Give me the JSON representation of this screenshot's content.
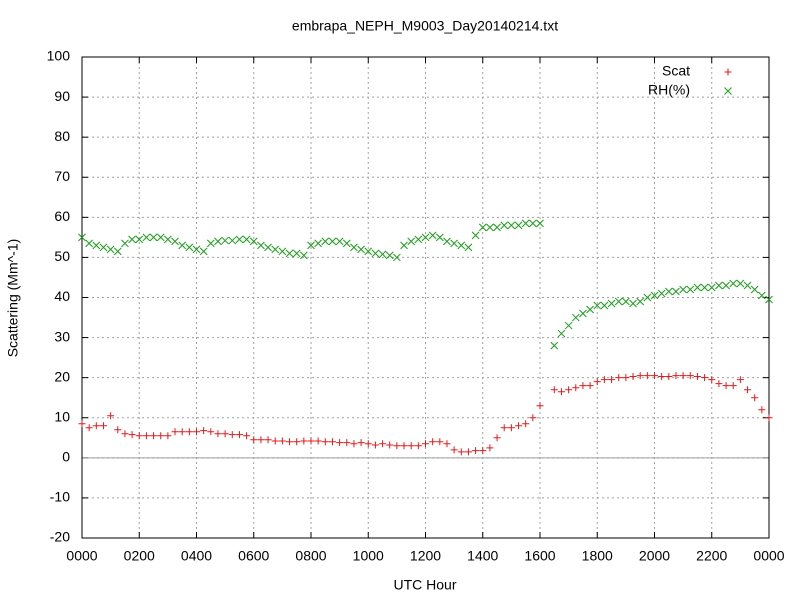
{
  "chart_data": {
    "type": "scatter",
    "title": "embrapa_NEPH_M9003_Day20140214.txt",
    "x_label": "UTC Hour",
    "y_label": "Scattering (Mm^-1)",
    "xlim": [
      0,
      24
    ],
    "ylim": [
      -20,
      100
    ],
    "xticks": [
      {
        "value": 0,
        "label": "0000"
      },
      {
        "value": 2,
        "label": "0200"
      },
      {
        "value": 4,
        "label": "0400"
      },
      {
        "value": 6,
        "label": "0600"
      },
      {
        "value": 8,
        "label": "0800"
      },
      {
        "value": 10,
        "label": "1000"
      },
      {
        "value": 12,
        "label": "1200"
      },
      {
        "value": 14,
        "label": "1400"
      },
      {
        "value": 16,
        "label": "1600"
      },
      {
        "value": 18,
        "label": "1800"
      },
      {
        "value": 20,
        "label": "2000"
      },
      {
        "value": 22,
        "label": "2200"
      },
      {
        "value": 24,
        "label": "0000"
      }
    ],
    "yticks": [
      -20,
      -10,
      0,
      10,
      20,
      30,
      40,
      50,
      60,
      70,
      80,
      90,
      100
    ],
    "grid": true,
    "legend": "top-right",
    "x": [
      0,
      0.25,
      0.5,
      0.75,
      1,
      1.25,
      1.5,
      1.75,
      2,
      2.25,
      2.5,
      2.75,
      3,
      3.25,
      3.5,
      3.75,
      4,
      4.25,
      4.5,
      4.75,
      5,
      5.25,
      5.5,
      5.75,
      6,
      6.25,
      6.5,
      6.75,
      7,
      7.25,
      7.5,
      7.75,
      8,
      8.25,
      8.5,
      8.75,
      9,
      9.25,
      9.5,
      9.75,
      10,
      10.25,
      10.5,
      10.75,
      11,
      11.25,
      11.5,
      11.75,
      12,
      12.25,
      12.5,
      12.75,
      13,
      13.25,
      13.5,
      13.75,
      14,
      14.25,
      14.5,
      14.75,
      15,
      15.25,
      15.5,
      15.75,
      16,
      16.25,
      16.5,
      16.75,
      17,
      17.25,
      17.5,
      17.75,
      18,
      18.25,
      18.5,
      18.75,
      19,
      19.25,
      19.5,
      19.75,
      20,
      20.25,
      20.5,
      20.75,
      21,
      21.25,
      21.5,
      21.75,
      22,
      22.25,
      22.5,
      22.75,
      23,
      23.25,
      23.5,
      23.75,
      24
    ],
    "series": [
      {
        "name": "Scat",
        "color": "#e41a1c",
        "marker": "plus",
        "values": [
          8.5,
          7.5,
          8,
          8,
          10.5,
          7,
          6,
          5.8,
          5.5,
          5.5,
          5.5,
          5.5,
          5.5,
          6.5,
          6.5,
          6.5,
          6.5,
          6.8,
          6.5,
          6,
          6,
          5.8,
          5.8,
          5.5,
          4.5,
          4.5,
          4.5,
          4.2,
          4.2,
          4,
          4,
          4.2,
          4.2,
          4.2,
          4,
          4,
          3.8,
          3.8,
          3.5,
          3.8,
          3.5,
          3.2,
          3.5,
          3.2,
          3,
          3,
          3,
          3,
          3.5,
          4,
          4,
          3.5,
          2,
          1.5,
          1.5,
          1.8,
          1.8,
          2.5,
          5,
          7.5,
          7.5,
          8,
          8.5,
          10,
          13,
          null,
          17,
          16.5,
          17,
          17.5,
          18,
          18,
          19,
          19.5,
          19.5,
          20,
          20,
          20.3,
          20.5,
          20.5,
          20.5,
          20.3,
          20.3,
          20.5,
          20.5,
          20.5,
          20.3,
          20,
          19.5,
          18.5,
          18,
          18,
          19.5,
          17,
          15,
          12,
          10
        ]
      },
      {
        "name": "RH(%)",
        "color": "#1a9e1a",
        "marker": "cross",
        "values": [
          55,
          53.5,
          53,
          52.5,
          52,
          51.5,
          53.5,
          54.5,
          54.5,
          55,
          55,
          55,
          54.5,
          54,
          53,
          52.5,
          52,
          51.5,
          53.5,
          54,
          54.2,
          54.2,
          54.5,
          54.5,
          54,
          53,
          52.5,
          52,
          51.5,
          51,
          51,
          50.5,
          53,
          53.5,
          54,
          54,
          54,
          53.5,
          52.5,
          52,
          51.5,
          51,
          50.8,
          50.5,
          50,
          53,
          54,
          54.5,
          55,
          55.5,
          55,
          54,
          53.5,
          53,
          52.5,
          55.5,
          57.5,
          57.5,
          57.5,
          58,
          58,
          58,
          58.5,
          58.5,
          58.5,
          null,
          28,
          31,
          33,
          35,
          36,
          37,
          38,
          38,
          38.5,
          39,
          39,
          38.5,
          39,
          40,
          40.5,
          41,
          41.5,
          41.5,
          42,
          42,
          42.5,
          42.5,
          42.5,
          43,
          43,
          43.5,
          43.5,
          43,
          42,
          40.5,
          39.5
        ]
      }
    ]
  }
}
